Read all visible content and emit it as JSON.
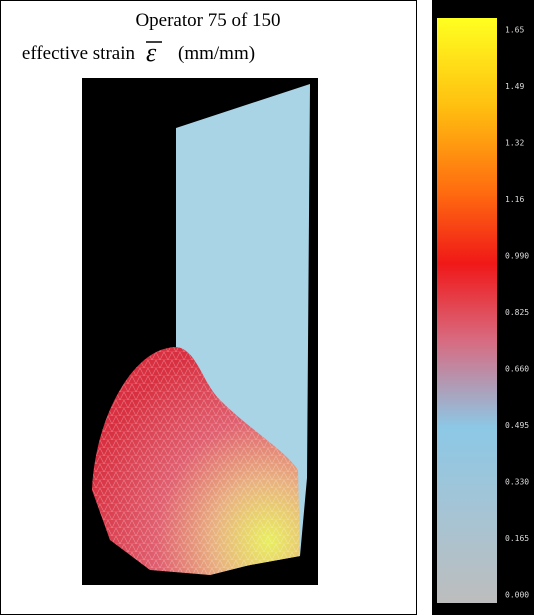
{
  "header": {
    "title": "Operator 75 of 150",
    "quantity": "effective strain",
    "symbol": "ε",
    "units": "(mm/mm)"
  },
  "colorbar": {
    "labels": [
      "1.65",
      "1.49",
      "1.32",
      "1.16",
      "0.990",
      "0.825",
      "0.660",
      "0.495",
      "0.330",
      "0.165",
      "0.000"
    ]
  }
}
